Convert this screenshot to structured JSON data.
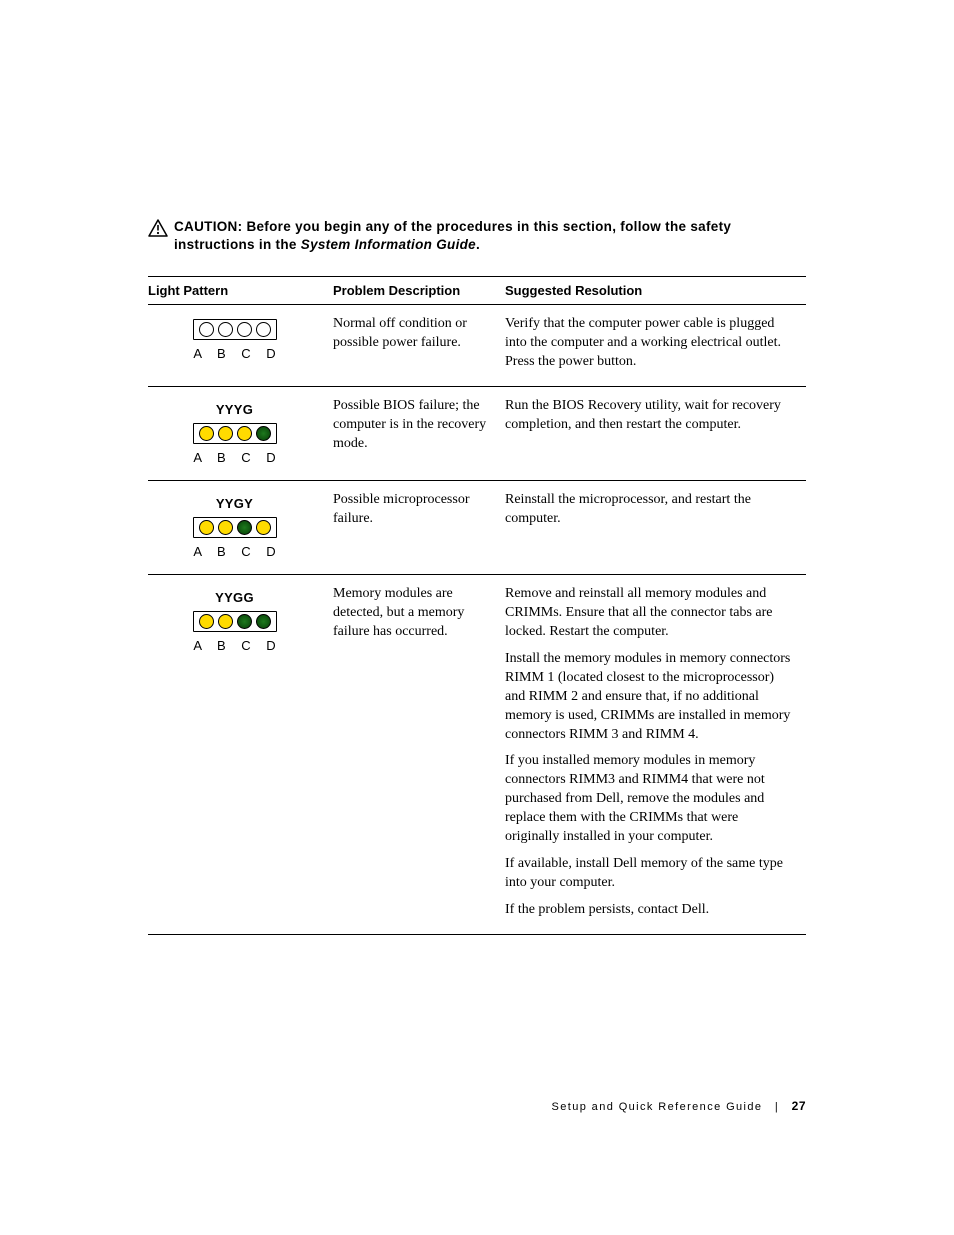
{
  "caution": {
    "bold_prefix": "CAUTION: ",
    "text": "Before you begin any of the procedures in this section, follow the safety instructions in the ",
    "italic_suffix": "System Information Guide",
    "period": "."
  },
  "table": {
    "headers": {
      "pattern": "Light Pattern",
      "description": "Problem Description",
      "resolution": "Suggested Resolution"
    },
    "abcd_label": "A B C D",
    "led_colors": {
      "Y": "#ffdb00",
      "G": "#0b5a0b",
      "O": "#ffffff"
    },
    "rows": [
      {
        "code": "",
        "leds": [
          "O",
          "O",
          "O",
          "O"
        ],
        "description": "Normal off condition or possible power failure.",
        "resolutions": [
          "Verify that the computer power cable is plugged into the computer and a working electrical outlet. Press the power button."
        ]
      },
      {
        "code": "YYYG",
        "leds": [
          "Y",
          "Y",
          "Y",
          "G"
        ],
        "description": "Possible BIOS failure; the computer is in the recovery mode.",
        "resolutions": [
          "Run the BIOS Recovery utility, wait for recovery completion, and then restart the computer."
        ]
      },
      {
        "code": "YYGY",
        "leds": [
          "Y",
          "Y",
          "G",
          "Y"
        ],
        "description": "Possible microprocessor failure.",
        "resolutions": [
          "Reinstall the microprocessor, and restart the computer."
        ]
      },
      {
        "code": "YYGG",
        "leds": [
          "Y",
          "Y",
          "G",
          "G"
        ],
        "description": "Memory modules are detected, but a memory failure has occurred.",
        "resolutions": [
          "Remove and reinstall all memory modules and CRIMMs. Ensure that all the connector tabs are locked. Restart the computer.",
          "Install the memory modules in memory connectors RIMM 1 (located closest to the microprocessor) and RIMM 2 and ensure that, if no additional memory is used, CRIMMs are installed in memory connectors RIMM 3 and RIMM 4.",
          "If you installed memory modules in memory connectors RIMM3 and RIMM4 that were not purchased from Dell, remove the modules and replace them with the CRIMMs that were originally installed in your computer.",
          "If available, install Dell memory of the same type into your computer.",
          "If the problem persists, contact Dell."
        ]
      }
    ]
  },
  "footer": {
    "title": "Setup and Quick Reference Guide",
    "separator": "|",
    "page": "27"
  }
}
